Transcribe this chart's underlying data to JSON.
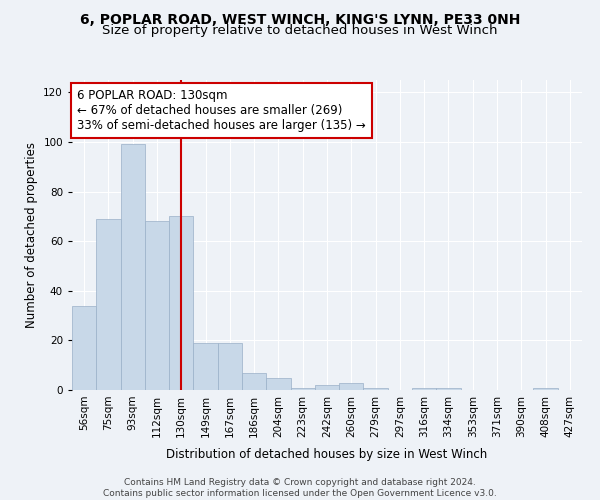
{
  "title1": "6, POPLAR ROAD, WEST WINCH, KING'S LYNN, PE33 0NH",
  "title2": "Size of property relative to detached houses in West Winch",
  "xlabel": "Distribution of detached houses by size in West Winch",
  "ylabel": "Number of detached properties",
  "bar_values": [
    34,
    69,
    99,
    68,
    70,
    19,
    19,
    7,
    5,
    1,
    2,
    3,
    1,
    0,
    1,
    1,
    0,
    0,
    0,
    1,
    0
  ],
  "bin_labels": [
    "56sqm",
    "75sqm",
    "93sqm",
    "112sqm",
    "130sqm",
    "149sqm",
    "167sqm",
    "186sqm",
    "204sqm",
    "223sqm",
    "242sqm",
    "260sqm",
    "279sqm",
    "297sqm",
    "316sqm",
    "334sqm",
    "353sqm",
    "371sqm",
    "390sqm",
    "408sqm",
    "427sqm"
  ],
  "bar_color": "#c8d8e8",
  "bar_edge_color": "#9ab0c8",
  "vline_x_index": 4,
  "vline_color": "#cc0000",
  "annotation_text": "6 POPLAR ROAD: 130sqm\n← 67% of detached houses are smaller (269)\n33% of semi-detached houses are larger (135) →",
  "annotation_box_color": "#ffffff",
  "annotation_box_edge": "#cc0000",
  "ylim": [
    0,
    125
  ],
  "yticks": [
    0,
    20,
    40,
    60,
    80,
    100,
    120
  ],
  "footer": "Contains HM Land Registry data © Crown copyright and database right 2024.\nContains public sector information licensed under the Open Government Licence v3.0.",
  "bg_color": "#eef2f7",
  "grid_color": "#ffffff",
  "title1_fontsize": 10,
  "title2_fontsize": 9.5,
  "annot_fontsize": 8.5,
  "axis_label_fontsize": 8.5,
  "tick_fontsize": 7.5,
  "footer_fontsize": 6.5
}
